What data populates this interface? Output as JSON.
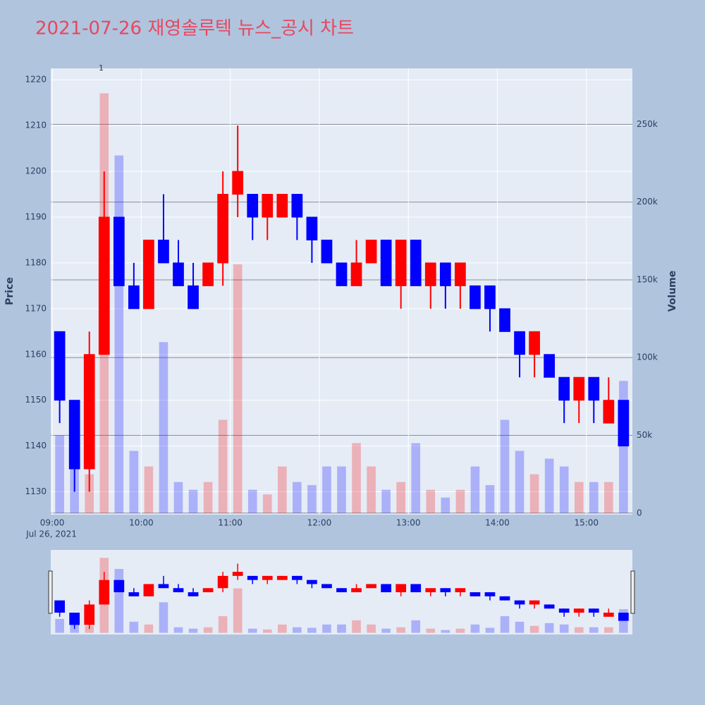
{
  "chart_data": {
    "type": "candlestick",
    "title": "2021-07-26 재영솔루텍 뉴스_공시 차트",
    "y_title": "Price",
    "y2_title": "Volume",
    "x_date_label": "Jul 26, 2021",
    "increasing_color": "#ff0000",
    "decreasing_color": "#0000ff",
    "x": [
      "2021-07-26 09:00",
      "2021-07-26 09:10",
      "2021-07-26 09:20",
      "2021-07-26 09:30",
      "2021-07-26 09:40",
      "2021-07-26 09:50",
      "2021-07-26 10:00",
      "2021-07-26 10:10",
      "2021-07-26 10:20",
      "2021-07-26 10:30",
      "2021-07-26 10:40",
      "2021-07-26 10:50",
      "2021-07-26 11:00",
      "2021-07-26 11:10",
      "2021-07-26 11:20",
      "2021-07-26 11:30",
      "2021-07-26 11:40",
      "2021-07-26 11:50",
      "2021-07-26 12:00",
      "2021-07-26 12:10",
      "2021-07-26 12:20",
      "2021-07-26 12:30",
      "2021-07-26 12:40",
      "2021-07-26 12:50",
      "2021-07-26 13:00",
      "2021-07-26 13:10",
      "2021-07-26 13:20",
      "2021-07-26 13:30",
      "2021-07-26 13:40",
      "2021-07-26 13:50",
      "2021-07-26 14:00",
      "2021-07-26 14:10",
      "2021-07-26 14:20",
      "2021-07-26 14:30",
      "2021-07-26 14:40",
      "2021-07-26 14:50",
      "2021-07-26 15:00",
      "2021-07-26 15:10",
      "2021-07-26 15:20"
    ],
    "open": [
      1165,
      1150,
      1135,
      1160,
      1190,
      1175,
      1170,
      1185,
      1180,
      1175,
      1175,
      1180,
      1195,
      1195,
      1190,
      1190,
      1195,
      1190,
      1185,
      1180,
      1175,
      1180,
      1185,
      1175,
      1185,
      1175,
      1180,
      1175,
      1175,
      1175,
      1170,
      1165,
      1160,
      1160,
      1155,
      1150,
      1155,
      1145,
      1150
    ],
    "high": [
      1165,
      1150,
      1165,
      1200,
      1190,
      1180,
      1185,
      1195,
      1185,
      1180,
      1180,
      1200,
      1210,
      1195,
      1195,
      1195,
      1195,
      1190,
      1185,
      1180,
      1185,
      1185,
      1185,
      1185,
      1185,
      1180,
      1180,
      1180,
      1175,
      1175,
      1170,
      1165,
      1165,
      1160,
      1155,
      1155,
      1155,
      1155,
      1150
    ],
    "low": [
      1145,
      1130,
      1130,
      1160,
      1175,
      1170,
      1170,
      1180,
      1175,
      1170,
      1175,
      1175,
      1190,
      1185,
      1185,
      1190,
      1185,
      1180,
      1180,
      1175,
      1175,
      1180,
      1175,
      1170,
      1175,
      1170,
      1170,
      1170,
      1170,
      1165,
      1165,
      1155,
      1155,
      1155,
      1145,
      1145,
      1145,
      1145,
      1140
    ],
    "close": [
      1150,
      1135,
      1160,
      1190,
      1175,
      1170,
      1185,
      1180,
      1175,
      1170,
      1180,
      1195,
      1200,
      1190,
      1195,
      1195,
      1190,
      1185,
      1180,
      1175,
      1180,
      1185,
      1175,
      1185,
      1175,
      1180,
      1175,
      1180,
      1170,
      1170,
      1165,
      1160,
      1165,
      1155,
      1150,
      1155,
      1150,
      1150,
      1140
    ],
    "volume": [
      50000,
      30000,
      25000,
      270000,
      230000,
      40000,
      30000,
      110000,
      20000,
      15000,
      20000,
      60000,
      160000,
      15000,
      12000,
      30000,
      20000,
      18000,
      30000,
      30000,
      45000,
      30000,
      15000,
      20000,
      45000,
      15000,
      10000,
      15000,
      30000,
      18000,
      60000,
      40000,
      25000,
      35000,
      30000,
      20000,
      20000,
      20000,
      85000
    ],
    "annotation": {
      "text": "1",
      "x": "2021-07-26 09:33"
    },
    "xlim": [
      "2021-07-26 08:59",
      "2021-07-26 15:31"
    ],
    "xticks": [
      {
        "value": "2021-07-26 09:00",
        "label": "09:00"
      },
      {
        "value": "2021-07-26 10:00",
        "label": "10:00"
      },
      {
        "value": "2021-07-26 11:00",
        "label": "11:00"
      },
      {
        "value": "2021-07-26 12:00",
        "label": "12:00"
      },
      {
        "value": "2021-07-26 13:00",
        "label": "13:00"
      },
      {
        "value": "2021-07-26 14:00",
        "label": "14:00"
      },
      {
        "value": "2021-07-26 15:00",
        "label": "15:00"
      }
    ],
    "ylim": [
      1125,
      1222.5
    ],
    "yticks": [
      1130,
      1140,
      1150,
      1160,
      1170,
      1180,
      1190,
      1200,
      1210,
      1220
    ],
    "y2lim": [
      -1000,
      286000
    ],
    "y2ticks": [
      0,
      {
        "value": 50000,
        "label": "50k"
      },
      {
        "value": 100000,
        "label": "100k"
      },
      {
        "value": 150000,
        "label": "150k"
      },
      {
        "value": 200000,
        "label": "200k"
      },
      {
        "value": 250000,
        "label": "250k"
      }
    ],
    "grid": true
  }
}
